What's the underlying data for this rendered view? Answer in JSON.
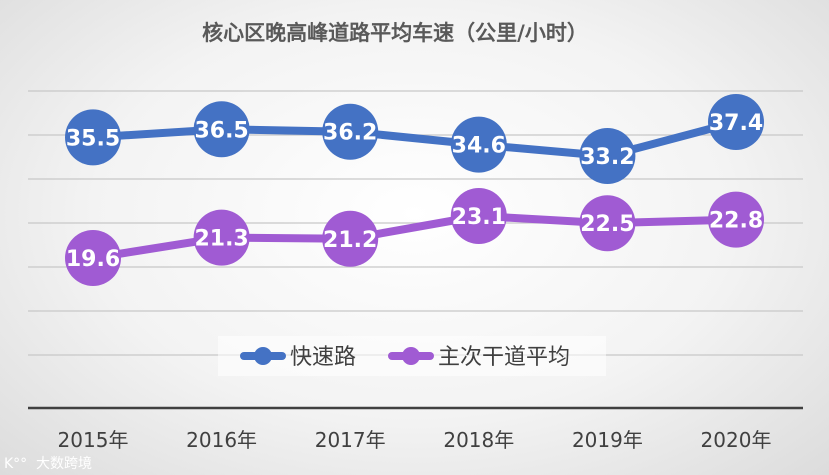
{
  "chart_data": {
    "type": "line",
    "title": "核心区晚高峰道路平均车速（公里/小时）",
    "categories": [
      "2015年",
      "2016年",
      "2017年",
      "2018年",
      "2019年",
      "2020年"
    ],
    "series": [
      {
        "name": "快速路",
        "color": "#4472C4",
        "values": [
          35.5,
          36.5,
          36.2,
          34.6,
          33.2,
          37.4
        ],
        "labels": [
          "35.5",
          "36.5",
          "36.2",
          "34.6",
          "33.2",
          "37.4"
        ]
      },
      {
        "name": "主次干道平均",
        "color": "#A05BD3",
        "values": [
          19.6,
          21.3,
          21.2,
          23.1,
          22.5,
          22.8
        ],
        "labels": [
          "19.6",
          "21.3",
          "21.2",
          "23.1",
          "22.5",
          "22.8"
        ]
      }
    ],
    "grid": true,
    "legend_position": "bottom-center"
  },
  "watermark": "大数跨境"
}
